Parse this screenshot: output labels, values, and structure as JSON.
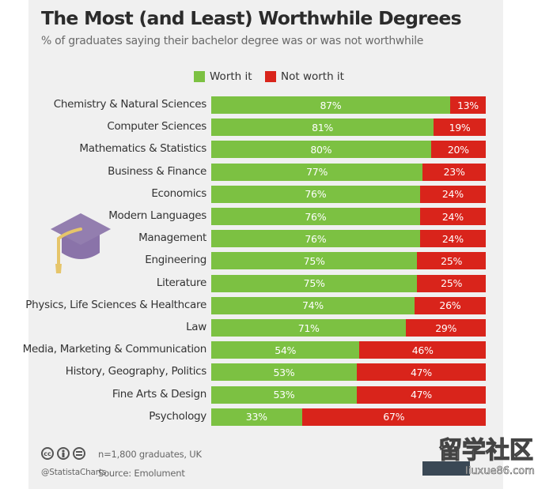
{
  "chart_data": {
    "type": "bar",
    "orientation": "horizontal",
    "stacked": true,
    "title": "The Most (and Least) Worthwhile Degrees",
    "subtitle": "% of graduates saying their bachelor degree was or was not worthwhile",
    "categories": [
      "Chemistry & Natural Sciences",
      "Computer Sciences",
      "Mathematics & Statistics",
      "Business & Finance",
      "Economics",
      "Modern Languages",
      "Management",
      "Engineering",
      "Literature",
      "Physics, Life Sciences & Healthcare",
      "Law",
      "Media, Marketing & Communication",
      "History, Geography, Politics",
      "Fine Arts & Design",
      "Psychology"
    ],
    "series": [
      {
        "name": "Worth it",
        "color": "#7cc142",
        "values": [
          87,
          81,
          80,
          77,
          76,
          76,
          76,
          75,
          75,
          74,
          71,
          54,
          53,
          53,
          33
        ],
        "labels": [
          "87%",
          "81%",
          "80%",
          "77%",
          "76%",
          "76%",
          "76%",
          "75%",
          "75%",
          "74%",
          "71%",
          "54%",
          "53%",
          "53%",
          "33%"
        ]
      },
      {
        "name": "Not worth it",
        "color": "#d9241b",
        "values": [
          13,
          19,
          20,
          23,
          24,
          24,
          24,
          25,
          25,
          26,
          29,
          46,
          47,
          47,
          67
        ],
        "labels": [
          "13%",
          "19%",
          "20%",
          "23%",
          "24%",
          "24%",
          "24%",
          "25%",
          "25%",
          "26%",
          "29%",
          "46%",
          "47%",
          "47%",
          "67%"
        ]
      }
    ],
    "xlim": [
      0,
      100
    ],
    "legend_position": "top"
  },
  "footer": {
    "note": "n=1,800 graduates, UK",
    "source": "Source: Emolument",
    "handle": "@StatistaCharts",
    "cc_icons": [
      "creative-commons-icon",
      "attribution-icon",
      "no-derivatives-icon"
    ]
  },
  "watermark": {
    "text": "留学社区",
    "url": "liuxue86.com"
  },
  "colors": {
    "worth": "#7cc142",
    "not_worth": "#d9241b",
    "background": "#f0f0f0",
    "cap": "#8a73a9",
    "tassel": "#e6c56a"
  }
}
